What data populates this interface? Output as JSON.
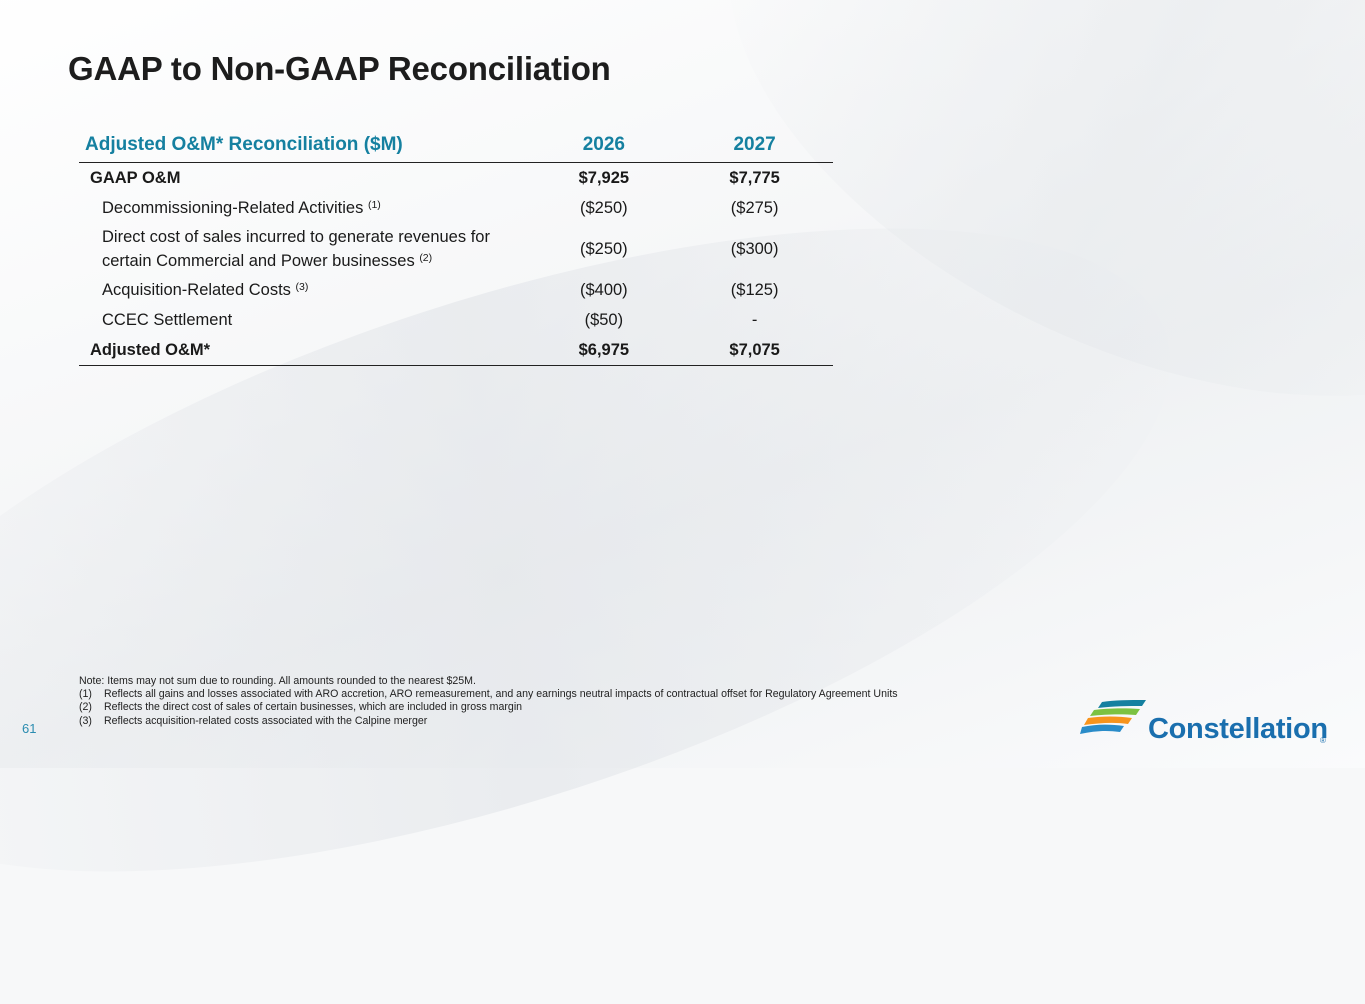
{
  "title": "GAAP to Non-GAAP Reconciliation",
  "table": {
    "header": {
      "label": "Adjusted O&M* Reconciliation ($M)",
      "years": [
        "2026",
        "2027"
      ]
    },
    "rows": [
      {
        "label": "GAAP O&M",
        "note": "",
        "v2026": "$7,925",
        "v2027": "$7,775"
      },
      {
        "label": "Decommissioning-Related Activities",
        "note": "(1)",
        "v2026": "($250)",
        "v2027": "($275)"
      },
      {
        "label_line1": "Direct cost of sales incurred to generate revenues for",
        "label_line2": "certain Commercial and Power businesses",
        "note": "(2)",
        "v2026": "($250)",
        "v2027": "($300)"
      },
      {
        "label": "Acquisition-Related Costs",
        "note": "(3)",
        "v2026": "($400)",
        "v2027": "($125)"
      },
      {
        "label": "CCEC Settlement",
        "note": "",
        "v2026": "($50)",
        "v2027": "-"
      },
      {
        "label": "Adjusted O&M*",
        "note": "",
        "v2026": "$6,975",
        "v2027": "$7,075"
      }
    ]
  },
  "notes": {
    "intro": "Note: Items may not sum due to rounding. All amounts rounded to the nearest $25M.",
    "footnotes": [
      {
        "num": "(1)",
        "text": "Reflects all gains and losses associated with ARO accretion, ARO remeasurement, and any earnings neutral impacts of contractual offset for Regulatory Agreement Units"
      },
      {
        "num": "(2)",
        "text": "Reflects the direct cost of sales of certain businesses, which are included in gross margin"
      },
      {
        "num": "(3)",
        "text": "Reflects acquisition-related costs associated with the Calpine merger"
      }
    ]
  },
  "page_number": "61",
  "logo": {
    "wordmark": "Constellation",
    "registered": "®",
    "icon": "constellation-swoosh-logo-icon",
    "colors": [
      "#1580a0",
      "#7cc242",
      "#f7941d",
      "#2a8cc9"
    ]
  }
}
